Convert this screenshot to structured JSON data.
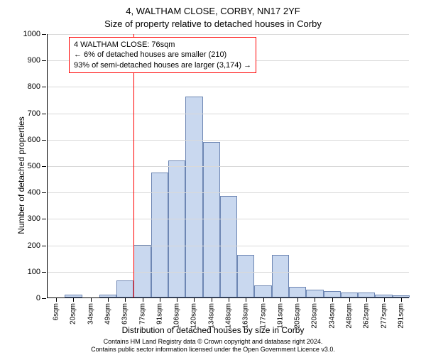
{
  "title_line1": "4, WALTHAM CLOSE, CORBY, NN17 2YF",
  "title_line2": "Size of property relative to detached houses in Corby",
  "ylabel": "Number of detached properties",
  "xlabel": "Distribution of detached houses by size in Corby",
  "credits_line1": "Contains HM Land Registry data © Crown copyright and database right 2024.",
  "credits_line2": "Contains public sector information licensed under the Open Government Licence v3.0.",
  "chart": {
    "type": "histogram",
    "ylim_max": 1000,
    "ytick_step": 100,
    "y_tick_labels": [
      "0",
      "100",
      "200",
      "300",
      "400",
      "500",
      "600",
      "700",
      "800",
      "900",
      "1000"
    ],
    "x_labels": [
      "6sqm",
      "20sqm",
      "34sqm",
      "49sqm",
      "63sqm",
      "77sqm",
      "91sqm",
      "106sqm",
      "120sqm",
      "134sqm",
      "148sqm",
      "163sqm",
      "177sqm",
      "191sqm",
      "205sqm",
      "220sqm",
      "234sqm",
      "248sqm",
      "262sqm",
      "277sqm",
      "291sqm"
    ],
    "values": [
      0,
      10,
      0,
      12,
      65,
      198,
      472,
      520,
      760,
      588,
      385,
      160,
      45,
      160,
      40,
      30,
      25,
      20,
      18,
      12,
      8
    ],
    "bar_fill": "#c9d8ef",
    "bar_stroke": "#6d86b3",
    "grid_color": "#d9d9d9",
    "background": "#ffffff",
    "bar_width_ratio": 1.0,
    "label_fontsize": 12,
    "tick_fontsize": 11
  },
  "marker": {
    "x_index_position": 5.0,
    "color": "#ff0000"
  },
  "annotation": {
    "border_color": "#ff0000",
    "line1": "4 WALTHAM CLOSE: 76sqm",
    "line2": "← 6% of detached houses are smaller (210)",
    "line3": "93% of semi-detached houses are larger (3,174) →"
  }
}
